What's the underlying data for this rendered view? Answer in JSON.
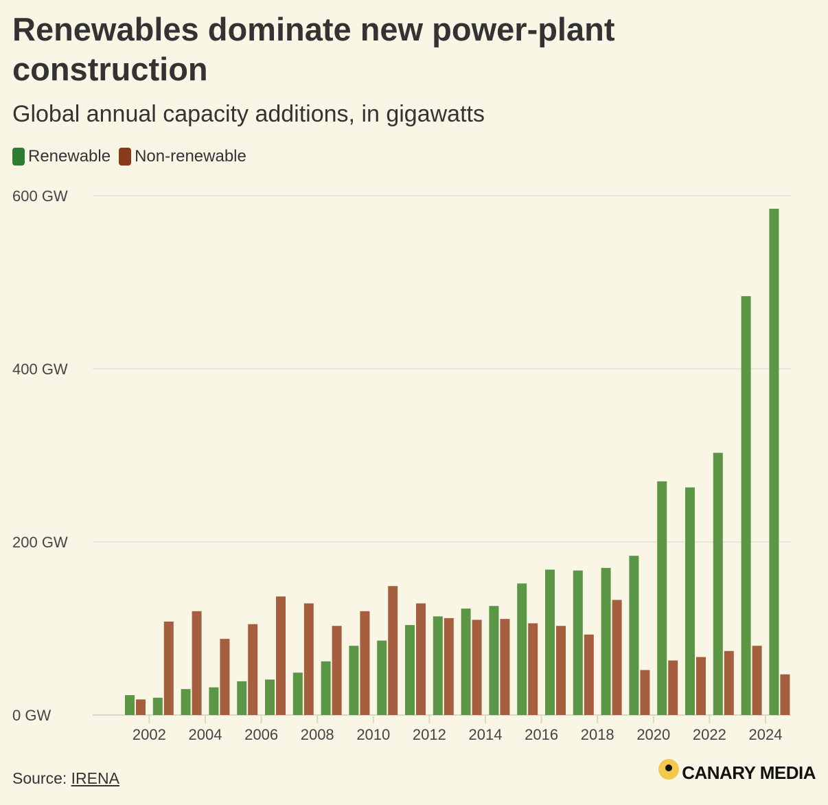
{
  "header": {
    "title": "Renewables dominate new power-plant construction",
    "subtitle": "Global annual capacity additions, in gigawatts"
  },
  "legend": {
    "renewable_label": "Renewable",
    "nonrenewable_label": "Non-renewable"
  },
  "colors": {
    "renewable": "#5b9646",
    "renewable_legend": "#2e7d32",
    "nonrenewable": "#a55f3e",
    "nonrenewable_legend": "#8b3a1b",
    "background": "#f9f6e6",
    "grid": "#e9e6dd"
  },
  "footer": {
    "source_prefix": "Source: ",
    "source_link": "IRENA",
    "brand": "CANARY MEDIA"
  },
  "chart_data": {
    "type": "bar",
    "title": "Renewables dominate new power-plant construction",
    "subtitle": "Global annual capacity additions, in gigawatts",
    "xlabel": "",
    "ylabel": "",
    "ylim": [
      0,
      600
    ],
    "y_ticks": [
      0,
      200,
      400,
      600
    ],
    "y_tick_labels": [
      "0 GW",
      "200 GW",
      "400 GW",
      "600 GW"
    ],
    "x_tick_labels": [
      "2002",
      "2004",
      "2006",
      "2008",
      "2010",
      "2012",
      "2014",
      "2016",
      "2018",
      "2020",
      "2022",
      "2024"
    ],
    "categories": [
      "2001",
      "2002",
      "2003",
      "2004",
      "2005",
      "2006",
      "2007",
      "2008",
      "2009",
      "2010",
      "2011",
      "2012",
      "2013",
      "2014",
      "2015",
      "2016",
      "2017",
      "2018",
      "2019",
      "2020",
      "2021",
      "2022",
      "2023",
      "2024"
    ],
    "series": [
      {
        "name": "Renewable",
        "values": [
          23,
          20,
          30,
          32,
          39,
          41,
          49,
          62,
          80,
          86,
          104,
          114,
          123,
          126,
          152,
          168,
          167,
          170,
          184,
          270,
          263,
          303,
          484,
          585
        ]
      },
      {
        "name": "Non-renewable",
        "values": [
          18,
          108,
          120,
          88,
          105,
          137,
          129,
          103,
          120,
          149,
          129,
          112,
          110,
          111,
          106,
          103,
          93,
          133,
          52,
          63,
          67,
          74,
          80,
          47
        ]
      }
    ],
    "legend_position": "top-left",
    "grid": true
  }
}
